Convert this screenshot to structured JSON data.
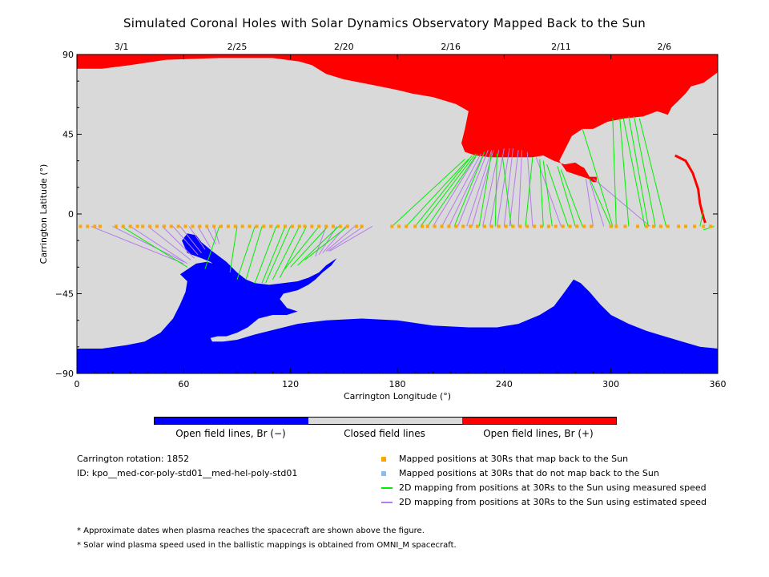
{
  "title": "Simulated Coronal Holes with Solar Dynamics Observatory Mapped Back to the Sun",
  "chart_data": {
    "type": "map",
    "xlabel": "Carrington Longitude (°)",
    "ylabel": "Carrington Latitude (°)",
    "xlim": [
      0,
      360
    ],
    "ylim": [
      -90,
      90
    ],
    "xticks": [
      0,
      60,
      120,
      180,
      240,
      300,
      360
    ],
    "yticks": [
      -90,
      -45,
      0,
      45,
      90
    ],
    "ytick_labels": [
      "−90",
      "−45",
      "0",
      "45",
      "90"
    ],
    "top_axis_dates": [
      {
        "lon": 25,
        "label": "3/1"
      },
      {
        "lon": 90,
        "label": "2/25"
      },
      {
        "lon": 150,
        "label": "2/20"
      },
      {
        "lon": 210,
        "label": "2/16"
      },
      {
        "lon": 272,
        "label": "2/11"
      },
      {
        "lon": 330,
        "label": "2/6"
      }
    ],
    "colors": {
      "open_negative": "#0000ff",
      "closed": "#d9d9d9",
      "open_positive": "#ff0000",
      "mapped_back": "#ffa500",
      "not_mapped": "#87bdf0",
      "measured_speed": "#00ee00",
      "estimated_speed": "#b57bec"
    },
    "colorbar": [
      {
        "label": "Open field lines, Br (−)",
        "color": "#0000ff"
      },
      {
        "label": "Closed field lines",
        "color": "#d9d9d9"
      },
      {
        "label": "Open field lines, Br (+)",
        "color": "#ff0000"
      }
    ],
    "footpoint_latitude": -7,
    "measured_mappings": [
      {
        "lon_30rs": 25,
        "lat_sun": -30,
        "lon_sun": 62
      },
      {
        "lon_30rs": 80,
        "lat_sun": -31,
        "lon_sun": 72
      },
      {
        "lon_30rs": 90,
        "lat_sun": -33,
        "lon_sun": 86
      },
      {
        "lon_30rs": 100,
        "lat_sun": -37,
        "lon_sun": 90
      },
      {
        "lon_30rs": 104,
        "lat_sun": -37,
        "lon_sun": 95
      },
      {
        "lon_30rs": 112,
        "lat_sun": -39,
        "lon_sun": 100
      },
      {
        "lon_30rs": 117,
        "lat_sun": -39,
        "lon_sun": 104
      },
      {
        "lon_30rs": 120,
        "lat_sun": -39,
        "lon_sun": 106
      },
      {
        "lon_30rs": 125,
        "lat_sun": -37,
        "lon_sun": 110
      },
      {
        "lon_30rs": 129,
        "lat_sun": -36,
        "lon_sun": 114
      },
      {
        "lon_30rs": 136,
        "lat_sun": -32,
        "lon_sun": 116
      },
      {
        "lon_30rs": 141,
        "lat_sun": -30,
        "lon_sun": 120
      },
      {
        "lon_30rs": 147,
        "lat_sun": -29,
        "lon_sun": 124
      },
      {
        "lon_30rs": 152,
        "lat_sun": -26,
        "lon_sun": 128
      },
      {
        "lon_30rs": 177,
        "lat_sun": 31,
        "lon_sun": 218
      },
      {
        "lon_30rs": 185,
        "lat_sun": 31,
        "lon_sun": 220
      },
      {
        "lon_30rs": 190,
        "lat_sun": 33,
        "lon_sun": 222
      },
      {
        "lon_30rs": 193,
        "lat_sun": 34,
        "lon_sun": 224
      },
      {
        "lon_30rs": 197,
        "lat_sun": 34,
        "lon_sun": 225
      },
      {
        "lon_30rs": 212,
        "lat_sun": 35,
        "lon_sun": 229
      },
      {
        "lon_30rs": 226,
        "lat_sun": 35,
        "lon_sun": 233
      },
      {
        "lon_30rs": 235,
        "lat_sun": 34,
        "lon_sun": 236
      },
      {
        "lon_30rs": 244,
        "lat_sun": 33,
        "lon_sun": 239
      },
      {
        "lon_30rs": 252,
        "lat_sun": 32,
        "lon_sun": 256
      },
      {
        "lon_30rs": 262,
        "lat_sun": 31,
        "lon_sun": 260
      },
      {
        "lon_30rs": 267,
        "lat_sun": 30,
        "lon_sun": 262
      },
      {
        "lon_30rs": 276,
        "lat_sun": 28,
        "lon_sun": 264
      },
      {
        "lon_30rs": 280,
        "lat_sun": 27,
        "lon_sun": 270
      },
      {
        "lon_30rs": 284,
        "lat_sun": 25,
        "lon_sun": 272
      },
      {
        "lon_30rs": 300,
        "lat_sun": 20,
        "lon_sun": 288
      },
      {
        "lon_30rs": 303,
        "lat_sun": 54,
        "lon_sun": 301
      },
      {
        "lon_30rs": 310,
        "lat_sun": 54,
        "lon_sun": 305
      },
      {
        "lon_30rs": 319,
        "lat_sun": 54,
        "lon_sun": 307
      },
      {
        "lon_30rs": 321,
        "lat_sun": 55,
        "lon_sun": 310
      },
      {
        "lon_30rs": 325,
        "lat_sun": 55,
        "lon_sun": 313
      },
      {
        "lon_30rs": 331,
        "lat_sun": 54,
        "lon_sun": 316
      },
      {
        "lon_30rs": 301,
        "lat_sun": 48,
        "lon_sun": 284
      },
      {
        "lon_30rs": 350,
        "lat_sun": 2,
        "lon_sun": 352
      },
      {
        "lon_30rs": 358,
        "lat_sun": -9,
        "lon_sun": 352
      }
    ],
    "estimated_mappings": [
      {
        "lon_30rs": 8,
        "lat_sun": -28,
        "lon_sun": 60
      },
      {
        "lon_30rs": 20,
        "lat_sun": -27,
        "lon_sun": 60
      },
      {
        "lon_30rs": 30,
        "lat_sun": -28,
        "lon_sun": 62
      },
      {
        "lon_30rs": 40,
        "lat_sun": -26,
        "lon_sun": 64
      },
      {
        "lon_30rs": 48,
        "lat_sun": -25,
        "lon_sun": 66
      },
      {
        "lon_30rs": 54,
        "lat_sun": -23,
        "lon_sun": 68
      },
      {
        "lon_30rs": 58,
        "lat_sun": -22,
        "lon_sun": 70
      },
      {
        "lon_30rs": 63,
        "lat_sun": -20,
        "lon_sun": 72
      },
      {
        "lon_30rs": 68,
        "lat_sun": -19,
        "lon_sun": 75
      },
      {
        "lon_30rs": 73,
        "lat_sun": -17,
        "lon_sun": 78
      },
      {
        "lon_30rs": 77,
        "lat_sun": -17,
        "lon_sun": 80
      },
      {
        "lon_30rs": 140,
        "lat_sun": -24,
        "lon_sun": 134
      },
      {
        "lon_30rs": 146,
        "lat_sun": -23,
        "lon_sun": 136
      },
      {
        "lon_30rs": 151,
        "lat_sun": -22,
        "lon_sun": 138
      },
      {
        "lon_30rs": 156,
        "lat_sun": -21,
        "lon_sun": 140
      },
      {
        "lon_30rs": 161,
        "lat_sun": -21,
        "lon_sun": 141
      },
      {
        "lon_30rs": 166,
        "lat_sun": -21,
        "lon_sun": 142
      },
      {
        "lon_30rs": 200,
        "lat_sun": 32,
        "lon_sun": 224
      },
      {
        "lon_30rs": 205,
        "lat_sun": 34,
        "lon_sun": 227
      },
      {
        "lon_30rs": 209,
        "lat_sun": 35,
        "lon_sun": 229
      },
      {
        "lon_30rs": 214,
        "lat_sun": 36,
        "lon_sun": 231
      },
      {
        "lon_30rs": 219,
        "lat_sun": 36,
        "lon_sun": 233
      },
      {
        "lon_30rs": 222,
        "lat_sun": 36,
        "lon_sun": 234
      },
      {
        "lon_30rs": 228,
        "lat_sun": 36,
        "lon_sun": 237
      },
      {
        "lon_30rs": 232,
        "lat_sun": 37,
        "lon_sun": 240
      },
      {
        "lon_30rs": 236,
        "lat_sun": 37,
        "lon_sun": 243
      },
      {
        "lon_30rs": 240,
        "lat_sun": 37,
        "lon_sun": 245
      },
      {
        "lon_30rs": 243,
        "lat_sun": 36,
        "lon_sun": 248
      },
      {
        "lon_30rs": 248,
        "lat_sun": 36,
        "lon_sun": 250
      },
      {
        "lon_30rs": 256,
        "lat_sun": 35,
        "lon_sun": 253
      },
      {
        "lon_30rs": 272,
        "lat_sun": 32,
        "lon_sun": 258
      },
      {
        "lon_30rs": 290,
        "lat_sun": 20,
        "lon_sun": 286
      },
      {
        "lon_30rs": 296,
        "lat_sun": 19,
        "lon_sun": 288
      },
      {
        "lon_30rs": 322,
        "lat_sun": 20,
        "lon_sun": 290
      }
    ],
    "south_hole_boundary": [
      [
        0,
        -76
      ],
      [
        14,
        -76
      ],
      [
        28,
        -74
      ],
      [
        38,
        -72
      ],
      [
        47,
        -67
      ],
      [
        54,
        -59
      ],
      [
        58,
        -51
      ],
      [
        61,
        -44
      ],
      [
        62,
        -38
      ],
      [
        58,
        -34
      ],
      [
        61,
        -32
      ],
      [
        67,
        -28
      ],
      [
        73,
        -27
      ],
      [
        80,
        -29
      ],
      [
        84,
        -31
      ],
      [
        86,
        -33
      ],
      [
        84,
        -35
      ],
      [
        80,
        -37
      ],
      [
        70,
        -39
      ],
      [
        64,
        -39
      ],
      [
        69,
        -36
      ],
      [
        72,
        -34
      ],
      [
        77,
        -32
      ],
      [
        79,
        -30
      ],
      [
        75,
        -27
      ],
      [
        70,
        -25
      ],
      [
        62,
        -22
      ],
      [
        59,
        -15
      ],
      [
        62,
        -11
      ],
      [
        67,
        -12
      ],
      [
        70,
        -16
      ],
      [
        76,
        -21
      ],
      [
        84,
        -27
      ],
      [
        90,
        -33
      ],
      [
        95,
        -37
      ],
      [
        100,
        -39
      ],
      [
        108,
        -40
      ],
      [
        116,
        -39
      ],
      [
        124,
        -38
      ],
      [
        130,
        -36
      ],
      [
        136,
        -33
      ],
      [
        140,
        -29
      ],
      [
        146,
        -25
      ],
      [
        143,
        -29
      ],
      [
        138,
        -33
      ],
      [
        134,
        -37
      ],
      [
        130,
        -40
      ],
      [
        124,
        -43
      ],
      [
        116,
        -45
      ],
      [
        114,
        -48
      ],
      [
        118,
        -53
      ],
      [
        124,
        -55
      ],
      [
        118,
        -57
      ],
      [
        110,
        -57
      ],
      [
        102,
        -59
      ],
      [
        96,
        -64
      ],
      [
        90,
        -67
      ],
      [
        84,
        -69
      ],
      [
        79,
        -69
      ],
      [
        75,
        -70
      ],
      [
        76,
        -72
      ],
      [
        82,
        -72
      ],
      [
        90,
        -71
      ],
      [
        100,
        -68
      ],
      [
        112,
        -65
      ],
      [
        124,
        -62
      ],
      [
        140,
        -60
      ],
      [
        160,
        -59
      ],
      [
        180,
        -60
      ],
      [
        200,
        -63
      ],
      [
        220,
        -64
      ],
      [
        236,
        -64
      ],
      [
        248,
        -62
      ],
      [
        260,
        -57
      ],
      [
        268,
        -52
      ],
      [
        274,
        -44
      ],
      [
        279,
        -37
      ],
      [
        283,
        -39
      ],
      [
        288,
        -44
      ],
      [
        294,
        -51
      ],
      [
        300,
        -57
      ],
      [
        310,
        -62
      ],
      [
        320,
        -66
      ],
      [
        330,
        -69
      ],
      [
        340,
        -72
      ],
      [
        350,
        -75
      ],
      [
        360,
        -76
      ],
      [
        360,
        -90
      ],
      [
        0,
        -90
      ]
    ],
    "north_hole_boundary": [
      [
        0,
        82
      ],
      [
        14,
        82
      ],
      [
        30,
        84
      ],
      [
        50,
        87
      ],
      [
        80,
        88
      ],
      [
        110,
        88
      ],
      [
        125,
        86
      ],
      [
        132,
        84
      ],
      [
        140,
        79
      ],
      [
        150,
        76
      ],
      [
        160,
        74
      ],
      [
        170,
        72
      ],
      [
        180,
        70
      ],
      [
        188,
        68
      ],
      [
        200,
        66
      ],
      [
        213,
        62
      ],
      [
        220,
        58
      ],
      [
        218,
        48
      ],
      [
        216,
        40
      ],
      [
        218,
        35
      ],
      [
        224,
        33
      ],
      [
        232,
        32
      ],
      [
        240,
        32
      ],
      [
        248,
        32
      ],
      [
        256,
        32
      ],
      [
        262,
        33
      ],
      [
        268,
        30
      ],
      [
        274,
        28
      ],
      [
        280,
        29
      ],
      [
        283,
        27
      ],
      [
        285,
        26
      ],
      [
        288,
        21
      ],
      [
        292,
        21
      ],
      [
        292,
        18
      ],
      [
        290,
        18
      ],
      [
        287,
        20
      ],
      [
        281,
        22
      ],
      [
        275,
        24
      ],
      [
        271,
        30
      ],
      [
        274,
        36
      ],
      [
        278,
        44
      ],
      [
        284,
        48
      ],
      [
        290,
        48
      ],
      [
        298,
        52
      ],
      [
        308,
        54
      ],
      [
        318,
        55
      ],
      [
        326,
        58
      ],
      [
        332,
        56
      ],
      [
        334,
        60
      ],
      [
        338,
        64
      ],
      [
        342,
        68
      ],
      [
        345,
        72
      ],
      [
        352,
        74
      ],
      [
        360,
        80
      ],
      [
        360,
        90
      ],
      [
        0,
        90
      ]
    ],
    "mapped_positions_lons": [
      2,
      6,
      10,
      13,
      22,
      26,
      30,
      34,
      37,
      41,
      45,
      49,
      53,
      57,
      61,
      65,
      69,
      73,
      77,
      81,
      85,
      89,
      93,
      97,
      101,
      105,
      109,
      113,
      117,
      121,
      125,
      128,
      132,
      136,
      140,
      144,
      148,
      152,
      157,
      160,
      177,
      181,
      185,
      190,
      194,
      197,
      201,
      205,
      209,
      213,
      217,
      221,
      225,
      229,
      233,
      237,
      241,
      245,
      249,
      253,
      257,
      261,
      265,
      269,
      273,
      277,
      281,
      285,
      289,
      300,
      303,
      308,
      315,
      320,
      324,
      328,
      332,
      338,
      342,
      347,
      352,
      356
    ]
  },
  "footer": {
    "carrington_rotation": "Carrington rotation: 1852",
    "id": "ID: kpo__med-cor-poly-std01__med-hel-poly-std01",
    "note1": "* Approximate dates when plasma reaches the spacecraft are shown above the figure.",
    "note2": "* Solar wind plasma speed used in the ballistic mappings is obtained from OMNI_M spacecraft."
  },
  "legend": [
    {
      "label": "Mapped positions at 30Rs that map back to the Sun",
      "kind": "square",
      "color": "#ffa500"
    },
    {
      "label": "Mapped positions at 30Rs that do not map back to the Sun",
      "kind": "square",
      "color": "#87bdf0"
    },
    {
      "label": "2D mapping from positions at 30Rs to the Sun using measured speed",
      "kind": "line",
      "color": "#00ee00"
    },
    {
      "label": "2D mapping from positions at 30Rs to the Sun using estimated speed",
      "kind": "line",
      "color": "#b57bec"
    }
  ]
}
